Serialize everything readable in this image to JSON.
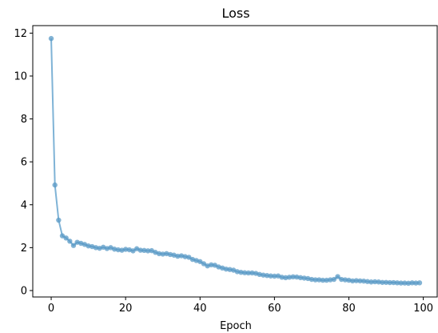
{
  "chart_data": {
    "type": "line",
    "title": "Loss",
    "xlabel": "Epoch",
    "ylabel": "",
    "xlim": [
      -4.95,
      103.95
    ],
    "ylim": [
      -0.3,
      12.35
    ],
    "xticks": [
      0,
      20,
      40,
      60,
      80,
      100
    ],
    "yticks": [
      0,
      2,
      4,
      6,
      8,
      10,
      12
    ],
    "grid": false,
    "legend": "none",
    "colors": {
      "line": "#7fb3d6",
      "marker": "#5a9ac6"
    },
    "series": [
      {
        "x": [
          0,
          1,
          2,
          3,
          4,
          5,
          6,
          7,
          8,
          9,
          10,
          11,
          12,
          13,
          14,
          15,
          16,
          17,
          18,
          19,
          20,
          21,
          22,
          23,
          24,
          25,
          26,
          27,
          28,
          29,
          30,
          31,
          32,
          33,
          34,
          35,
          36,
          37,
          38,
          39,
          40,
          41,
          42,
          43,
          44,
          45,
          46,
          47,
          48,
          49,
          50,
          51,
          52,
          53,
          54,
          55,
          56,
          57,
          58,
          59,
          60,
          61,
          62,
          63,
          64,
          65,
          66,
          67,
          68,
          69,
          70,
          71,
          72,
          73,
          74,
          75,
          76,
          77,
          78,
          79,
          80,
          81,
          82,
          83,
          84,
          85,
          86,
          87,
          88,
          89,
          90,
          91,
          92,
          93,
          94,
          95,
          96,
          97,
          98,
          99
        ],
        "values": [
          11.75,
          4.92,
          3.28,
          2.55,
          2.45,
          2.3,
          2.1,
          2.25,
          2.2,
          2.15,
          2.08,
          2.05,
          2.0,
          1.97,
          2.02,
          1.96,
          2.0,
          1.93,
          1.9,
          1.88,
          1.92,
          1.9,
          1.85,
          1.95,
          1.88,
          1.87,
          1.85,
          1.86,
          1.78,
          1.72,
          1.7,
          1.72,
          1.68,
          1.65,
          1.6,
          1.62,
          1.58,
          1.55,
          1.45,
          1.4,
          1.35,
          1.25,
          1.15,
          1.2,
          1.18,
          1.1,
          1.05,
          1.0,
          0.98,
          0.95,
          0.88,
          0.85,
          0.83,
          0.82,
          0.82,
          0.8,
          0.75,
          0.72,
          0.7,
          0.68,
          0.67,
          0.68,
          0.62,
          0.6,
          0.62,
          0.64,
          0.63,
          0.6,
          0.58,
          0.56,
          0.52,
          0.5,
          0.5,
          0.48,
          0.48,
          0.5,
          0.52,
          0.65,
          0.52,
          0.5,
          0.48,
          0.45,
          0.46,
          0.45,
          0.44,
          0.42,
          0.4,
          0.41,
          0.4,
          0.38,
          0.38,
          0.37,
          0.37,
          0.36,
          0.35,
          0.35,
          0.34,
          0.36,
          0.35,
          0.36
        ]
      }
    ]
  }
}
